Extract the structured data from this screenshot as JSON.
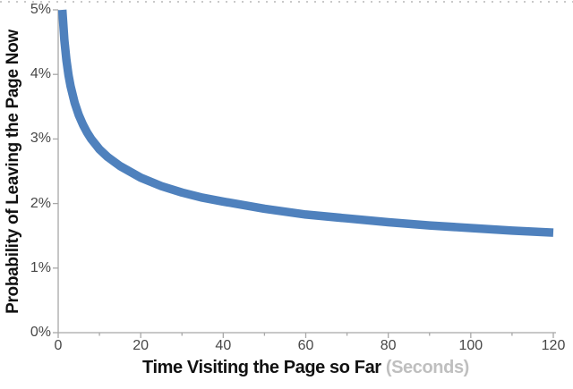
{
  "colors": {
    "curve": "#4F81BD",
    "axis_line": "#a8a8a8",
    "tick_label": "#474747",
    "title": "#111111",
    "title_suffix": "#bfbfbf",
    "background": "#ffffff",
    "dotted_border": "#c9c9c9"
  },
  "chart_data": {
    "type": "line",
    "title": "",
    "xlabel": "Time Visiting the Page so Far",
    "xlabel_suffix": " (Seconds)",
    "ylabel": "Probability of Leaving the Page Now",
    "xlim": [
      0,
      120
    ],
    "ylim": [
      0,
      5
    ],
    "grid": false,
    "legend": "none",
    "x_tick_labels": [
      "0",
      "20",
      "40",
      "60",
      "80",
      "100",
      "120"
    ],
    "x_tick_values": [
      0,
      20,
      40,
      60,
      80,
      100,
      120
    ],
    "x_minor_tick_interval": 10,
    "y_tick_labels": [
      "0%",
      "1%",
      "2%",
      "3%",
      "4%",
      "5%"
    ],
    "y_tick_values": [
      0,
      1,
      2,
      3,
      4,
      5
    ],
    "series": [
      {
        "name": "probability-of-leaving-curve",
        "color": "#4F81BD",
        "points": [
          [
            1,
            5.0
          ],
          [
            1.5,
            4.53
          ],
          [
            2,
            4.22
          ],
          [
            2.5,
            3.99
          ],
          [
            3,
            3.82
          ],
          [
            4,
            3.56
          ],
          [
            5,
            3.37
          ],
          [
            6,
            3.22
          ],
          [
            7,
            3.1
          ],
          [
            8,
            3.0
          ],
          [
            9,
            2.92
          ],
          [
            10,
            2.84
          ],
          [
            12,
            2.72
          ],
          [
            15,
            2.58
          ],
          [
            20,
            2.4
          ],
          [
            25,
            2.27
          ],
          [
            30,
            2.17
          ],
          [
            35,
            2.09
          ],
          [
            40,
            2.03
          ],
          [
            50,
            1.92
          ],
          [
            60,
            1.83
          ],
          [
            70,
            1.77
          ],
          [
            80,
            1.71
          ],
          [
            90,
            1.66
          ],
          [
            100,
            1.62
          ],
          [
            110,
            1.58
          ],
          [
            120,
            1.55
          ]
        ]
      }
    ]
  }
}
